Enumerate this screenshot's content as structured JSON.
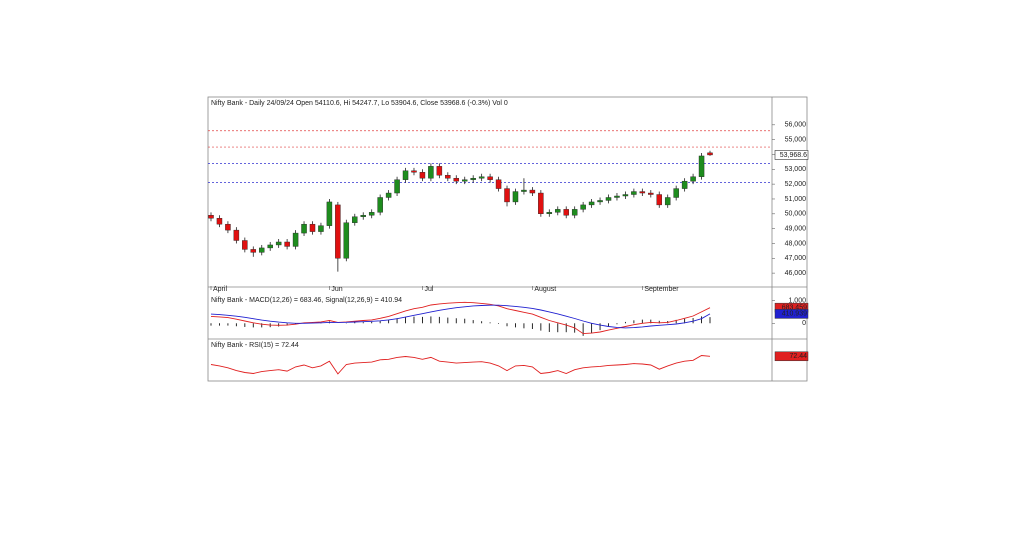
{
  "chart_data": [
    {
      "type": "candlestick",
      "title": "Nifty Bank - Daily 24/09/24 Open 54110.6, Hi 54247.7, Lo 53904.6, Close 53968.6 (-0.3%) Vol 0",
      "categories": [
        "April",
        null,
        null,
        null,
        null,
        null,
        null,
        null,
        null,
        null,
        null,
        null,
        null,
        null,
        "Jun",
        null,
        null,
        null,
        null,
        null,
        null,
        null,
        null,
        null,
        null,
        "Jul",
        null,
        null,
        null,
        null,
        null,
        null,
        null,
        null,
        null,
        null,
        null,
        null,
        "August",
        null,
        null,
        null,
        null,
        null,
        null,
        null,
        null,
        null,
        null,
        null,
        null,
        "September",
        null,
        null,
        null,
        null,
        null,
        null,
        null,
        null
      ],
      "open": [
        49900,
        49700,
        49300,
        48900,
        48200,
        47600,
        47400,
        47700,
        47900,
        48100,
        47800,
        48700,
        49300,
        48800,
        49200,
        50600,
        47000,
        49400,
        49800,
        49900,
        50100,
        51100,
        51400,
        52300,
        52900,
        52800,
        52400,
        53200,
        52600,
        52400,
        52200,
        52300,
        52400,
        52500,
        52300,
        51700,
        50800,
        51500,
        51600,
        51400,
        50000,
        50100,
        50300,
        49900,
        50300,
        50600,
        50800,
        50900,
        51100,
        51200,
        51300,
        51500,
        51400,
        51300,
        50600,
        51100,
        51700,
        52200,
        52500,
        54110.6
      ],
      "high": [
        50100,
        49900,
        49500,
        49100,
        48400,
        47800,
        47900,
        48100,
        48300,
        48300,
        48900,
        49500,
        49500,
        49400,
        51000,
        50800,
        49600,
        50000,
        50100,
        50300,
        51300,
        51600,
        52500,
        53100,
        53100,
        53000,
        53400,
        53400,
        52800,
        52600,
        52500,
        52600,
        52700,
        52700,
        52500,
        51900,
        51700,
        52400,
        51800,
        51600,
        50300,
        50500,
        50500,
        50500,
        50800,
        51000,
        51100,
        51300,
        51400,
        51500,
        51700,
        51700,
        51600,
        51500,
        51300,
        51900,
        52400,
        52700,
        54100,
        54247.7
      ],
      "low": [
        49500,
        49100,
        48700,
        48000,
        47400,
        47100,
        47200,
        47500,
        47700,
        47600,
        47600,
        48500,
        48600,
        48600,
        49000,
        46100,
        46800,
        49200,
        49600,
        49700,
        49900,
        50900,
        51200,
        52100,
        52600,
        52200,
        52200,
        52400,
        52200,
        52000,
        52000,
        52100,
        52200,
        52100,
        51500,
        50500,
        50600,
        51300,
        51200,
        49800,
        49800,
        49900,
        49700,
        49700,
        50100,
        50400,
        50600,
        50700,
        50900,
        51000,
        51100,
        51200,
        51100,
        50400,
        50400,
        50900,
        51500,
        52000,
        52300,
        53904.6
      ],
      "close": [
        49700,
        49300,
        48900,
        48200,
        47600,
        47400,
        47700,
        47900,
        48100,
        47800,
        48700,
        49300,
        48800,
        49200,
        50800,
        47000,
        49400,
        49800,
        49900,
        50100,
        51100,
        51400,
        52300,
        52900,
        52800,
        52400,
        53200,
        52600,
        52400,
        52200,
        52300,
        52400,
        52500,
        52300,
        51700,
        50800,
        51500,
        51600,
        51400,
        50000,
        50100,
        50300,
        49900,
        50300,
        50600,
        50800,
        50900,
        51100,
        51200,
        51300,
        51500,
        51400,
        51300,
        50600,
        51100,
        51700,
        52200,
        52500,
        53900,
        53968.6
      ],
      "up_color": "#1e8c1e",
      "down_color": "#e01010",
      "ylim": [
        45200,
        57200
      ],
      "yticks": [
        {
          "value": 46000,
          "label": "46,000"
        },
        {
          "value": 47000,
          "label": "47,000"
        },
        {
          "value": 48000,
          "label": "48,000"
        },
        {
          "value": 49000,
          "label": "49,000"
        },
        {
          "value": 50000,
          "label": "50,000"
        },
        {
          "value": 51000,
          "label": "51,000"
        },
        {
          "value": 52000,
          "label": "52,000"
        },
        {
          "value": 53000,
          "label": "53,000"
        },
        {
          "value": 54000,
          "label": "54,000"
        },
        {
          "value": 55000,
          "label": "55,000"
        },
        {
          "value": 56000,
          "label": "56,000"
        }
      ],
      "levels": [
        {
          "value": 55600,
          "color": "#e04040"
        },
        {
          "value": 54500,
          "color": "#e04040"
        },
        {
          "value": 53400,
          "color": "#3030d0"
        },
        {
          "value": 52100,
          "color": "#3030d0"
        }
      ],
      "last_label": "53,968.6"
    },
    {
      "type": "macd",
      "title": "Nifty Bank - MACD(12,26) = 683.46, Signal(12,26,9) = 410.94",
      "series": [
        {
          "color": "#e02020",
          "values": [
            300,
            280,
            250,
            180,
            100,
            20,
            -40,
            -80,
            -90,
            -80,
            -40,
            20,
            40,
            60,
            120,
            40,
            60,
            90,
            120,
            150,
            220,
            300,
            420,
            540,
            640,
            700,
            800,
            850,
            880,
            900,
            920,
            900,
            870,
            830,
            760,
            640,
            560,
            480,
            400,
            260,
            120,
            20,
            -80,
            -200,
            -450,
            -430,
            -380,
            -300,
            -220,
            -140,
            -60,
            0,
            40,
            20,
            40,
            120,
            220,
            320,
            500,
            683
          ]
        },
        {
          "color": "#2020d0",
          "values": [
            400,
            380,
            350,
            310,
            260,
            200,
            140,
            90,
            50,
            20,
            0,
            0,
            10,
            20,
            40,
            40,
            45,
            55,
            70,
            85,
            110,
            150,
            200,
            270,
            350,
            420,
            500,
            570,
            630,
            680,
            720,
            760,
            780,
            790,
            790,
            770,
            740,
            700,
            650,
            580,
            500,
            410,
            310,
            210,
            100,
            0,
            -80,
            -140,
            -180,
            -200,
            -190,
            -160,
            -120,
            -90,
            -60,
            -30,
            20,
            90,
            200,
            411
          ]
        }
      ],
      "histogram": {
        "color": "#111111",
        "values": [
          -100,
          -100,
          -100,
          -130,
          -160,
          -180,
          -180,
          -170,
          -140,
          -100,
          -40,
          20,
          30,
          40,
          80,
          0,
          15,
          35,
          50,
          65,
          110,
          150,
          220,
          270,
          290,
          280,
          300,
          280,
          250,
          220,
          200,
          140,
          90,
          40,
          -30,
          -130,
          -180,
          -220,
          -250,
          -320,
          -380,
          -390,
          -390,
          -410,
          -550,
          -430,
          -300,
          -160,
          -40,
          60,
          130,
          160,
          160,
          110,
          100,
          150,
          200,
          230,
          300,
          272
        ]
      },
      "value_labels": [
        "683.459",
        "410.939"
      ],
      "ylim": [
        -600,
        1150
      ],
      "yticks": [
        0,
        {
          "value": 1000,
          "label": "1,000"
        }
      ]
    },
    {
      "type": "line",
      "title": "Nifty Bank - RSI(15) = 72.44",
      "series": [
        {
          "color": "#e02020",
          "values": [
            55,
            52,
            48,
            42,
            38,
            36,
            40,
            42,
            44,
            41,
            50,
            54,
            48,
            52,
            62,
            35,
            55,
            58,
            59,
            60,
            65,
            66,
            70,
            72,
            70,
            66,
            70,
            62,
            60,
            58,
            59,
            60,
            61,
            58,
            52,
            42,
            52,
            53,
            50,
            36,
            38,
            42,
            36,
            44,
            48,
            50,
            51,
            53,
            54,
            55,
            57,
            56,
            54,
            45,
            52,
            58,
            62,
            64,
            74,
            72.44
          ]
        }
      ],
      "value_labels": [
        "72.44"
      ],
      "ylim": [
        20,
        90
      ]
    }
  ]
}
